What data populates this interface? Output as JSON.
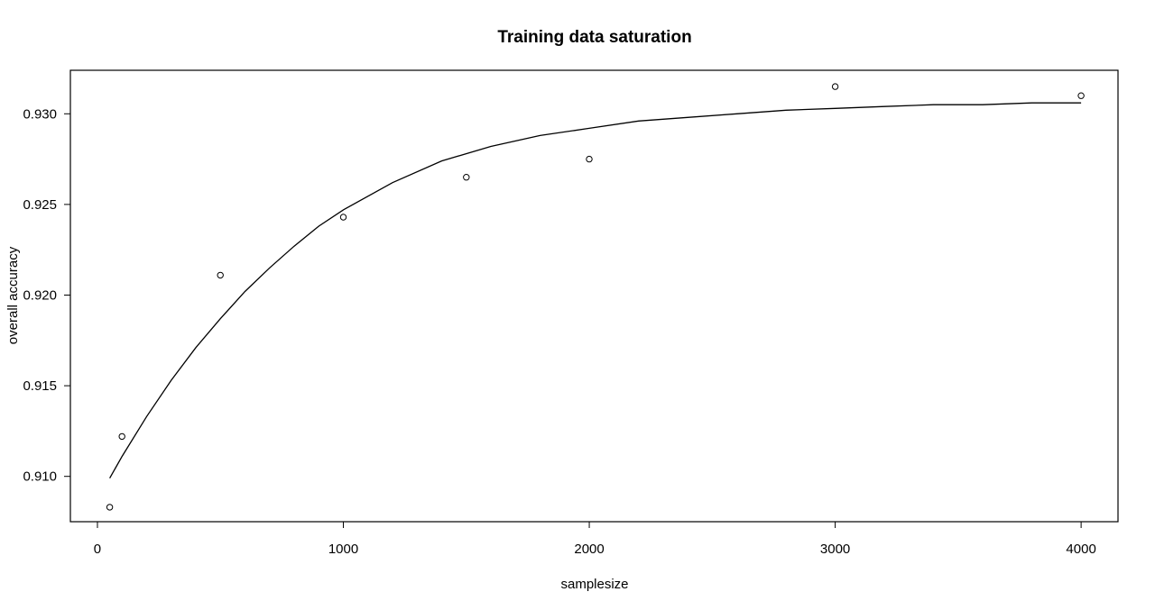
{
  "chart_data": {
    "type": "scatter",
    "title": "Training data saturation",
    "xlabel": "samplesize",
    "ylabel": "overall accuracy",
    "xlim": [
      -110,
      4150
    ],
    "ylim": [
      0.9075,
      0.9324
    ],
    "x_ticks": [
      0,
      1000,
      2000,
      3000,
      4000
    ],
    "x_tick_labels": [
      "0",
      "1000",
      "2000",
      "3000",
      "4000"
    ],
    "y_ticks": [
      0.91,
      0.915,
      0.92,
      0.925,
      0.93
    ],
    "y_tick_labels": [
      "0.910",
      "0.915",
      "0.920",
      "0.925",
      "0.930"
    ],
    "grid": false,
    "legend": "none",
    "series": [
      {
        "kind": "points",
        "x": [
          50,
          100,
          500,
          1000,
          1500,
          2000,
          3000,
          4000
        ],
        "y": [
          0.9083,
          0.9122,
          0.9211,
          0.9243,
          0.9265,
          0.9275,
          0.9315,
          0.931
        ]
      },
      {
        "kind": "line",
        "x": [
          50,
          100,
          200,
          300,
          400,
          500,
          600,
          700,
          800,
          900,
          1000,
          1200,
          1400,
          1600,
          1800,
          2000,
          2200,
          2400,
          2600,
          2800,
          3000,
          3200,
          3400,
          3600,
          3800,
          4000
        ],
        "y": [
          0.9099,
          0.9111,
          0.9133,
          0.9153,
          0.9171,
          0.9187,
          0.9202,
          0.9215,
          0.9227,
          0.9238,
          0.9247,
          0.9262,
          0.9274,
          0.9282,
          0.9288,
          0.9292,
          0.9296,
          0.9298,
          0.93,
          0.9302,
          0.9303,
          0.9304,
          0.9305,
          0.9305,
          0.9306,
          0.9306
        ]
      }
    ]
  }
}
